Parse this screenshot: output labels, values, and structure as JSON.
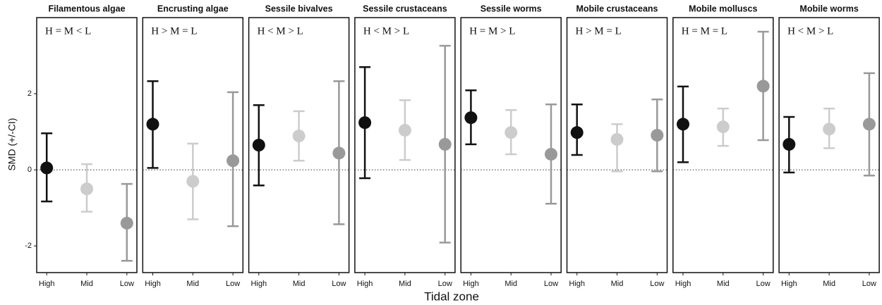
{
  "y_label": "SMD (+/-CI)",
  "x_label": "Tidal zone",
  "chart_data": [
    {
      "type": "errorbar",
      "title": "Filamentous algae",
      "annotation": "H = M < L",
      "categories": [
        "High",
        "Mid",
        "Low"
      ],
      "values": [
        0.05,
        -0.5,
        -1.4
      ],
      "lower": [
        -0.83,
        -1.1,
        -2.39
      ],
      "upper": [
        0.96,
        0.15,
        -0.37
      ],
      "colors": [
        "#111111",
        "#cccccc",
        "#999999"
      ],
      "ylim": [
        -2.7,
        4.0
      ],
      "yticks": [
        -2,
        0,
        2
      ],
      "hline": 0
    },
    {
      "type": "errorbar",
      "title": "Encrusting algae",
      "annotation": "H > M = L",
      "categories": [
        "High",
        "Mid",
        "Low"
      ],
      "values": [
        1.2,
        -0.3,
        0.24
      ],
      "lower": [
        0.05,
        -1.3,
        -1.48
      ],
      "upper": [
        2.33,
        0.69,
        2.04
      ],
      "colors": [
        "#111111",
        "#cccccc",
        "#999999"
      ],
      "ylim": [
        -2.7,
        4.0
      ],
      "hline": 0
    },
    {
      "type": "errorbar",
      "title": "Sessile bivalves",
      "annotation": "H < M > L",
      "categories": [
        "High",
        "Mid",
        "Low"
      ],
      "values": [
        0.65,
        0.89,
        0.44
      ],
      "lower": [
        -0.41,
        0.24,
        -1.43
      ],
      "upper": [
        1.7,
        1.54,
        2.33
      ],
      "colors": [
        "#111111",
        "#cccccc",
        "#999999"
      ],
      "ylim": [
        -2.7,
        4.0
      ],
      "hline": 0
    },
    {
      "type": "errorbar",
      "title": "Sessile crustaceans",
      "annotation": "H < M > L",
      "categories": [
        "High",
        "Mid",
        "Low"
      ],
      "values": [
        1.24,
        1.04,
        0.67
      ],
      "lower": [
        -0.22,
        0.26,
        -1.91
      ],
      "upper": [
        2.7,
        1.83,
        3.26
      ],
      "colors": [
        "#111111",
        "#cccccc",
        "#999999"
      ],
      "ylim": [
        -2.7,
        4.0
      ],
      "hline": 0
    },
    {
      "type": "errorbar",
      "title": "Sessile worms",
      "annotation": "H = M > L",
      "categories": [
        "High",
        "Mid",
        "Low"
      ],
      "values": [
        1.37,
        0.98,
        0.41
      ],
      "lower": [
        0.67,
        0.41,
        -0.89
      ],
      "upper": [
        2.09,
        1.57,
        1.72
      ],
      "colors": [
        "#111111",
        "#cccccc",
        "#999999"
      ],
      "ylim": [
        -2.7,
        4.0
      ],
      "hline": 0
    },
    {
      "type": "errorbar",
      "title": "Mobile crustaceans",
      "annotation": "H > M = L",
      "categories": [
        "High",
        "Mid",
        "Low"
      ],
      "values": [
        0.98,
        0.8,
        0.91
      ],
      "lower": [
        0.39,
        -0.04,
        -0.04
      ],
      "upper": [
        1.72,
        1.2,
        1.85
      ],
      "colors": [
        "#111111",
        "#cccccc",
        "#999999"
      ],
      "ylim": [
        -2.7,
        4.0
      ],
      "hline": 0
    },
    {
      "type": "errorbar",
      "title": "Mobile molluscs",
      "annotation": "H = M = L",
      "categories": [
        "High",
        "Mid",
        "Low"
      ],
      "values": [
        1.2,
        1.13,
        2.2
      ],
      "lower": [
        0.2,
        0.63,
        0.78
      ],
      "upper": [
        2.19,
        1.61,
        3.63
      ],
      "colors": [
        "#111111",
        "#cccccc",
        "#999999"
      ],
      "ylim": [
        -2.7,
        4.0
      ],
      "hline": 0
    },
    {
      "type": "errorbar",
      "title": "Mobile worms",
      "annotation": "H < M > L",
      "categories": [
        "High",
        "Mid",
        "Low"
      ],
      "values": [
        0.67,
        1.07,
        1.2
      ],
      "lower": [
        -0.07,
        0.57,
        -0.15
      ],
      "upper": [
        1.39,
        1.61,
        2.54
      ],
      "colors": [
        "#111111",
        "#cccccc",
        "#999999"
      ],
      "ylim": [
        -2.7,
        4.0
      ],
      "hline": 0
    }
  ]
}
